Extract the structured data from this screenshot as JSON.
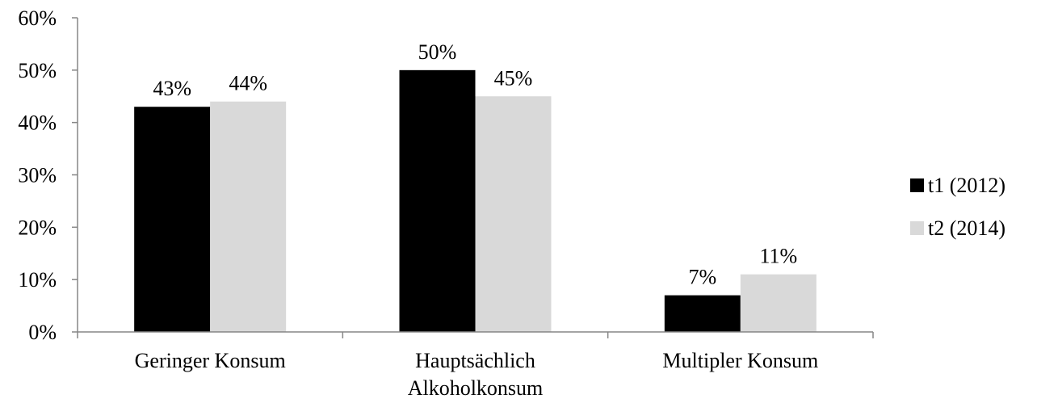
{
  "chart_data": {
    "type": "bar",
    "categories": [
      [
        "Geringer Konsum"
      ],
      [
        "Hauptsächlich",
        "Alkoholkonsum"
      ],
      [
        "Multipler Konsum"
      ]
    ],
    "series": [
      {
        "name": "t1 (2012)",
        "color": "#000000",
        "values": [
          43,
          50,
          7
        ],
        "labels": [
          "43%",
          "50%",
          "7%"
        ]
      },
      {
        "name": "t2 (2014)",
        "color": "#d9d9d9",
        "values": [
          44,
          45,
          11
        ],
        "labels": [
          "44%",
          "45%",
          "11%"
        ]
      }
    ],
    "y_ticks": [
      {
        "value": 0,
        "label": "0%"
      },
      {
        "value": 10,
        "label": "10%"
      },
      {
        "value": 20,
        "label": "20%"
      },
      {
        "value": 30,
        "label": "30%"
      },
      {
        "value": 40,
        "label": "40%"
      },
      {
        "value": 50,
        "label": "50%"
      },
      {
        "value": 60,
        "label": "60%"
      }
    ],
    "ylim": [
      0,
      60
    ],
    "grid": false,
    "legend_position": "right"
  }
}
